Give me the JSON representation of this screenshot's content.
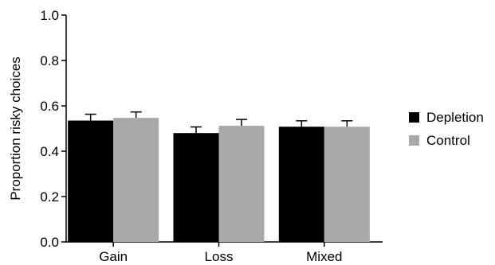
{
  "chart_data": {
    "type": "bar",
    "title": "",
    "xlabel": "",
    "ylabel": "Proportion risky choices",
    "ylim": [
      0,
      1.0
    ],
    "yticks": [
      "0.0",
      "0.2",
      "0.4",
      "0.6",
      "0.8",
      "1.0"
    ],
    "categories": [
      "Gain",
      "Loss",
      "Mixed"
    ],
    "series": [
      {
        "name": "Depletion",
        "color": "#000000",
        "values": [
          0.535,
          0.48,
          0.508
        ],
        "error": [
          0.028,
          0.027,
          0.026
        ]
      },
      {
        "name": "Control",
        "color": "#a9a9a9",
        "values": [
          0.547,
          0.512,
          0.508
        ],
        "error": [
          0.026,
          0.028,
          0.026
        ]
      }
    ],
    "legend_position": "right",
    "grid": false
  }
}
